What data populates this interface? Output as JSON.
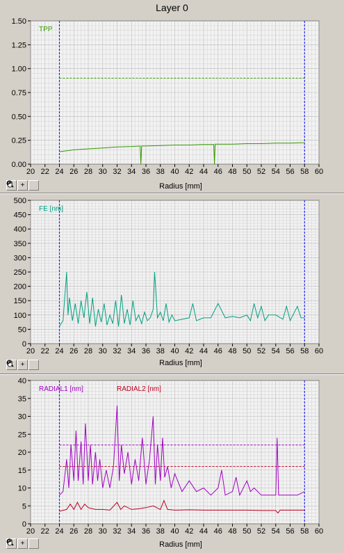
{
  "window": {
    "title": "Layer 0"
  },
  "toolbar": {
    "zoom_icon": "zoom-magnifier-icon",
    "crosshair_icon": "crosshair-plus-icon",
    "pan_icon": "hand-pan-icon",
    "plus_glyph": "+"
  },
  "chart_data": [
    {
      "type": "line",
      "xlabel": "Radius [mm]",
      "ylabel": "",
      "xlim": [
        20,
        60
      ],
      "ylim": [
        0,
        1.5
      ],
      "x_ticks": [
        20,
        22,
        24,
        26,
        28,
        30,
        32,
        34,
        36,
        38,
        40,
        42,
        44,
        46,
        48,
        50,
        52,
        54,
        56,
        58,
        60
      ],
      "y_ticks": [
        "0.00",
        "0.25",
        "0.50",
        "0.75",
        "1.00",
        "1.25",
        "1.50"
      ],
      "y_tick_values": [
        0,
        0.25,
        0.5,
        0.75,
        1.0,
        1.25,
        1.5
      ],
      "limits": [
        24,
        58
      ],
      "threshold": 0.9,
      "grid": true,
      "legend": "top-left",
      "series": [
        {
          "name": "TPP",
          "color": "#339900",
          "x": [
            24,
            26,
            28,
            30,
            32,
            34,
            35.2,
            35.3,
            35.4,
            36,
            38,
            40,
            42,
            44,
            45.4,
            45.5,
            45.6,
            46,
            48,
            50,
            52,
            54,
            56,
            58
          ],
          "y": [
            0.13,
            0.15,
            0.16,
            0.17,
            0.18,
            0.185,
            0.19,
            0.0,
            0.19,
            0.19,
            0.195,
            0.2,
            0.2,
            0.205,
            0.205,
            0.0,
            0.21,
            0.21,
            0.21,
            0.215,
            0.215,
            0.22,
            0.22,
            0.225
          ]
        }
      ]
    },
    {
      "type": "line",
      "xlabel": "Radius [mm]",
      "ylabel": "",
      "xlim": [
        20,
        60
      ],
      "ylim": [
        0,
        500
      ],
      "x_ticks": [
        20,
        22,
        24,
        26,
        28,
        30,
        32,
        34,
        36,
        38,
        40,
        42,
        44,
        46,
        48,
        50,
        52,
        54,
        56,
        58,
        60
      ],
      "y_ticks": [
        "0",
        "50",
        "100",
        "150",
        "200",
        "250",
        "300",
        "350",
        "400",
        "450",
        "500"
      ],
      "y_tick_values": [
        0,
        50,
        100,
        150,
        200,
        250,
        300,
        350,
        400,
        450,
        500
      ],
      "limits": [
        24,
        58
      ],
      "grid": true,
      "legend": "top-left",
      "series": [
        {
          "name": "FE [nm]",
          "color": "#00a080",
          "x": [
            24,
            24.5,
            25,
            25.2,
            25.4,
            25.8,
            26.2,
            26.6,
            27,
            27.4,
            27.8,
            28.2,
            28.6,
            29,
            29.4,
            29.8,
            30.2,
            30.6,
            31,
            31.4,
            31.8,
            32.2,
            32.6,
            33,
            33.4,
            33.8,
            34.2,
            34.6,
            35,
            35.4,
            35.8,
            36.2,
            36.6,
            37,
            37.2,
            37.6,
            38,
            38.4,
            38.8,
            39.2,
            39.6,
            40,
            41,
            42,
            42.5,
            43,
            44,
            45,
            46,
            47,
            48,
            49,
            50,
            50.5,
            51,
            51.5,
            52,
            52.5,
            53,
            54,
            55,
            55.5,
            56,
            57,
            57.5,
            58
          ],
          "y": [
            60,
            80,
            250,
            100,
            160,
            80,
            140,
            70,
            150,
            90,
            180,
            70,
            160,
            60,
            120,
            75,
            140,
            65,
            100,
            70,
            150,
            60,
            170,
            70,
            120,
            65,
            150,
            80,
            100,
            70,
            110,
            80,
            90,
            120,
            250,
            90,
            110,
            80,
            140,
            75,
            100,
            80,
            85,
            90,
            140,
            80,
            90,
            90,
            140,
            90,
            95,
            90,
            100,
            80,
            140,
            90,
            130,
            80,
            100,
            100,
            85,
            130,
            80,
            130,
            90,
            90
          ]
        }
      ]
    },
    {
      "type": "line",
      "xlabel": "Radius [mm]",
      "ylabel": "",
      "xlim": [
        20,
        60
      ],
      "ylim": [
        0,
        40
      ],
      "x_ticks": [
        20,
        22,
        24,
        26,
        28,
        30,
        32,
        34,
        36,
        38,
        40,
        42,
        44,
        46,
        48,
        50,
        52,
        54,
        56,
        58,
        60
      ],
      "y_ticks": [
        "0",
        "5",
        "10",
        "15",
        "20",
        "25",
        "30",
        "35",
        "40"
      ],
      "y_tick_values": [
        0,
        5,
        10,
        15,
        20,
        25,
        30,
        35,
        40
      ],
      "limits": [
        24,
        58
      ],
      "thresholds": [
        22,
        16
      ],
      "grid": true,
      "legend": "top-left",
      "series": [
        {
          "name": "RADIAL1 [nm]",
          "color": "#a000c0",
          "x": [
            24,
            24.5,
            25,
            25.3,
            25.6,
            26,
            26.3,
            26.6,
            27,
            27.3,
            27.6,
            28,
            28.3,
            28.6,
            29,
            29.3,
            29.6,
            30,
            30.5,
            31,
            31.5,
            32,
            32.3,
            32.6,
            33,
            33.5,
            34,
            34.5,
            35,
            35.5,
            36,
            36.5,
            37,
            37.3,
            37.6,
            38,
            38.3,
            38.6,
            39,
            39.5,
            40,
            41,
            42,
            43,
            44,
            45,
            46,
            46.5,
            47,
            48,
            48.5,
            49,
            50,
            50.5,
            51,
            52,
            53,
            54,
            54.2,
            54.4,
            54.6,
            55,
            56,
            57,
            58
          ],
          "y": [
            8,
            9,
            18,
            10,
            22,
            12,
            26,
            12,
            23,
            11,
            28,
            12,
            22,
            11,
            20,
            12,
            18,
            10,
            15,
            10,
            16,
            33,
            12,
            22,
            14,
            20,
            11,
            18,
            12,
            24,
            11,
            18,
            30,
            11,
            22,
            12,
            24,
            13,
            16,
            10,
            14,
            9,
            12,
            9,
            10,
            8,
            10,
            15,
            8,
            9,
            13,
            8,
            12,
            9,
            10,
            8,
            8,
            8,
            24,
            8,
            8,
            8,
            8,
            8,
            9
          ]
        },
        {
          "name": "RADIAL2 [nm]",
          "color": "#c00020",
          "x": [
            24,
            25,
            25.5,
            26,
            26.5,
            27,
            27.5,
            28,
            29,
            30,
            31,
            32,
            32.5,
            33,
            34,
            35,
            36,
            37,
            38,
            38.5,
            39,
            40,
            42,
            44,
            46,
            48,
            50,
            52,
            54,
            54.3,
            54.6,
            56,
            58
          ],
          "y": [
            3.5,
            4,
            5.5,
            4,
            6,
            4,
            5.5,
            4.5,
            4,
            4,
            3.8,
            6,
            4,
            5,
            4,
            4.2,
            4.5,
            5,
            4,
            6.5,
            4,
            3.8,
            3.9,
            3.8,
            3.8,
            3.8,
            3.8,
            3.7,
            3.7,
            3,
            3.8,
            3.8,
            3.8
          ]
        }
      ]
    }
  ]
}
